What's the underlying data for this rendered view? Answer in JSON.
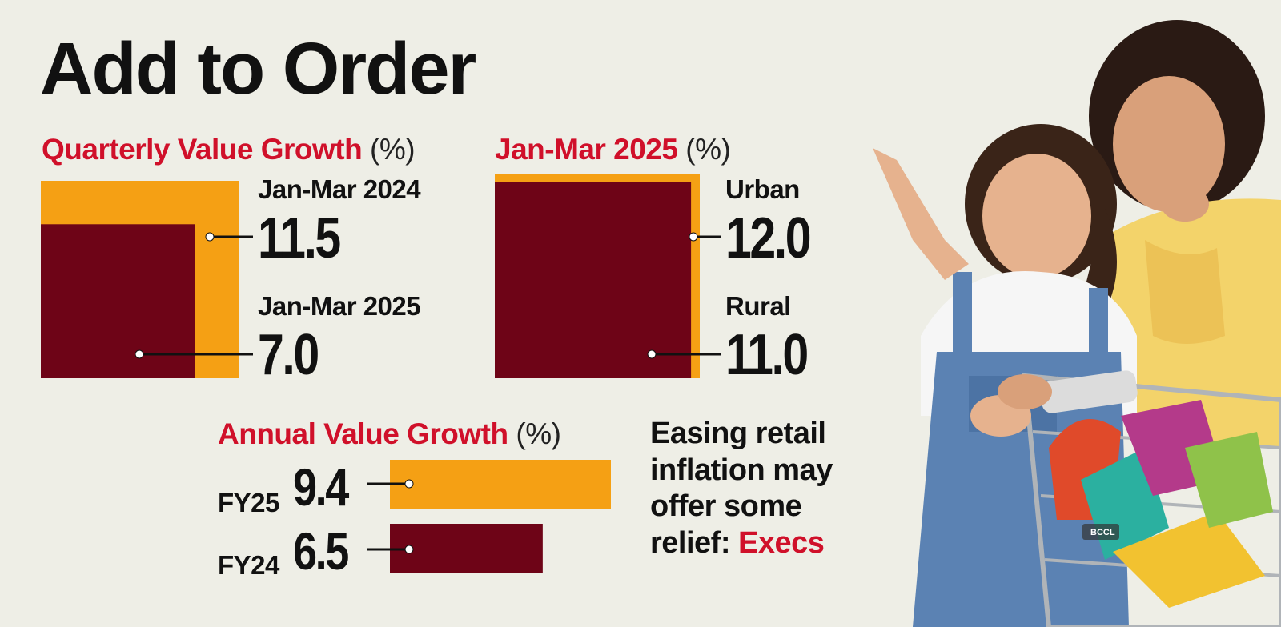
{
  "title": "Add to Order",
  "colors": {
    "orange": "#f5a014",
    "maroon": "#6e0417",
    "accent_red": "#d0102a",
    "background": "#eeeee6"
  },
  "chart_data": [
    {
      "type": "bar",
      "title": "Quarterly Value Growth",
      "unit": "(%)",
      "categories": [
        "Jan-Mar 2024",
        "Jan-Mar 2025"
      ],
      "values": [
        11.5,
        7.0
      ],
      "value_labels": [
        "11.5",
        "7.0"
      ]
    },
    {
      "type": "bar",
      "title": "Jan-Mar 2025",
      "unit": "(%)",
      "categories": [
        "Urban",
        "Rural"
      ],
      "values": [
        12.0,
        11.0
      ],
      "value_labels": [
        "12.0",
        "11.0"
      ]
    },
    {
      "type": "bar",
      "title": "Annual Value Growth",
      "unit": "(%)",
      "categories": [
        "FY25",
        "FY24"
      ],
      "values": [
        9.4,
        6.5
      ],
      "value_labels": [
        "9.4",
        "6.5"
      ]
    }
  ],
  "note": {
    "lines": [
      "Easing retail",
      "inflation may",
      "offer some"
    ],
    "last_prefix": "relief: ",
    "last_highlight": "Execs"
  },
  "photo": {
    "subject": "mother and daughter with shopping trolley",
    "credit": "BCCL"
  }
}
